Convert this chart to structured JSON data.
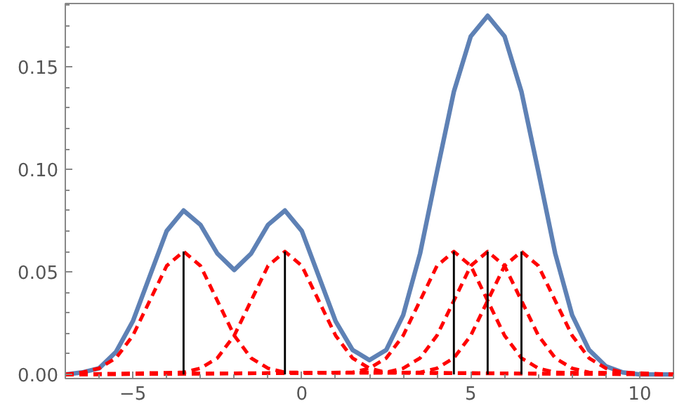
{
  "chart_data": {
    "type": "line",
    "xlim": [
      -7,
      11
    ],
    "ylim": [
      -0.002,
      0.181
    ],
    "xticks": [
      {
        "value": -5,
        "label": "−5"
      },
      0,
      5,
      10
    ],
    "yticks": [
      {
        "value": 0,
        "label": "0.00"
      },
      {
        "value": 0.05,
        "label": "0.05"
      },
      {
        "value": 0.1,
        "label": "0.10"
      },
      {
        "value": 0.15,
        "label": "0.15"
      }
    ],
    "grid": false,
    "marker": "none",
    "series": [
      {
        "color": "#5e81b5",
        "line_style": "solid",
        "x": [
          -7,
          -6.5,
          -6,
          -5.5,
          -5,
          -4.5,
          -4,
          -3.5,
          -3,
          -2.5,
          -2,
          -1.5,
          -1,
          -0.5,
          0,
          0.5,
          1,
          1.5,
          2,
          2.5,
          3,
          3.5,
          4,
          4.5,
          5,
          5.5,
          6,
          6.5,
          7,
          7.5,
          8,
          8.5,
          9,
          9.5,
          10,
          10.5,
          11
        ],
        "values": [
          0,
          0.001,
          0.003,
          0.011,
          0.026,
          0.048,
          0.07,
          0.08,
          0.073,
          0.059,
          0.051,
          0.059,
          0.073,
          0.08,
          0.07,
          0.048,
          0.026,
          0.012,
          0.007,
          0.012,
          0.029,
          0.059,
          0.099,
          0.138,
          0.165,
          0.175,
          0.165,
          0.138,
          0.099,
          0.059,
          0.029,
          0.012,
          0.004,
          0.001,
          0,
          0,
          0
        ]
      },
      {
        "color": "#ff0000",
        "line_style": "dashed",
        "x": [
          -7,
          -6.5,
          -6,
          -5.5,
          -5,
          -4.5,
          -4,
          -3.5,
          -3,
          -2.5,
          -2,
          -1.5,
          -1,
          -0.5,
          11
        ],
        "values": [
          0,
          0.001,
          0.003,
          0.008,
          0.019,
          0.036,
          0.053,
          0.06,
          0.053,
          0.036,
          0.019,
          0.008,
          0.003,
          0.001,
          0
        ]
      },
      {
        "color": "#ff0000",
        "line_style": "dashed",
        "x": [
          -7,
          -3.5,
          -3,
          -2.5,
          -2,
          -1.5,
          -1,
          -0.5,
          0,
          0.5,
          1,
          1.5,
          2,
          2.5,
          11
        ],
        "values": [
          0,
          0.001,
          0.003,
          0.008,
          0.019,
          0.036,
          0.053,
          0.06,
          0.053,
          0.036,
          0.019,
          0.008,
          0.003,
          0.001,
          0
        ]
      },
      {
        "color": "#ff0000",
        "line_style": "dashed",
        "x": [
          -7,
          1.5,
          2,
          2.5,
          3,
          3.5,
          4,
          4.5,
          5,
          5.5,
          6,
          6.5,
          7,
          7.5,
          11
        ],
        "values": [
          0,
          0.001,
          0.003,
          0.008,
          0.019,
          0.036,
          0.053,
          0.06,
          0.053,
          0.036,
          0.019,
          0.008,
          0.003,
          0.001,
          0
        ]
      },
      {
        "color": "#ff0000",
        "line_style": "dashed",
        "x": [
          -7,
          2.5,
          3,
          3.5,
          4,
          4.5,
          5,
          5.5,
          6,
          6.5,
          7,
          7.5,
          8,
          8.5,
          11
        ],
        "values": [
          0,
          0.001,
          0.003,
          0.008,
          0.019,
          0.036,
          0.053,
          0.06,
          0.053,
          0.036,
          0.019,
          0.008,
          0.003,
          0.001,
          0
        ]
      },
      {
        "color": "#ff0000",
        "line_style": "dashed",
        "x": [
          -7,
          3.5,
          4,
          4.5,
          5,
          5.5,
          6,
          6.5,
          7,
          7.5,
          8,
          8.5,
          9,
          9.5,
          11
        ],
        "values": [
          0,
          0.001,
          0.003,
          0.008,
          0.019,
          0.036,
          0.053,
          0.06,
          0.053,
          0.036,
          0.019,
          0.008,
          0.003,
          0.001,
          0
        ]
      },
      {
        "type": "bar",
        "color": "#000000",
        "x": [
          -3.5,
          -0.5,
          4.5,
          5.5,
          6.5
        ],
        "values": [
          0.06,
          0.06,
          0.06,
          0.06,
          0.06
        ]
      }
    ]
  }
}
